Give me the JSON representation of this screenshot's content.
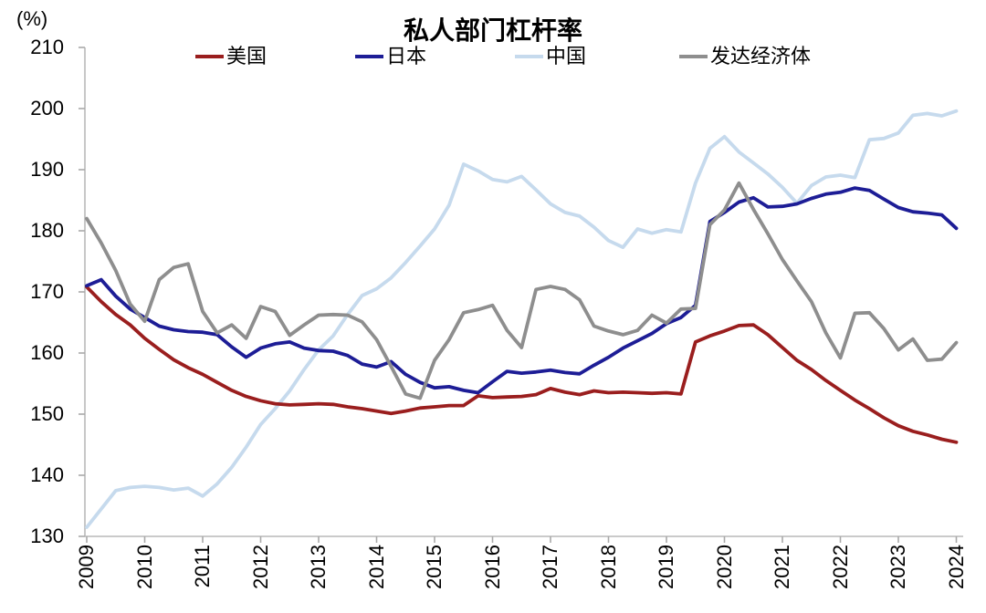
{
  "header": {
    "unit_label": "(%)",
    "title": "私人部门杠杆率"
  },
  "legend": [
    {
      "label": "美国"
    },
    {
      "label": "日本"
    },
    {
      "label": "中国"
    },
    {
      "label": "发达经济体"
    }
  ],
  "colors": {
    "us": "#9a1e1e",
    "japan": "#1d1d96",
    "china": "#c6daed",
    "developed": "#8e8e8e",
    "axis": "#b9b9b9",
    "tick": "#a9a9a9",
    "text": "#000000"
  },
  "chart_data": {
    "type": "line",
    "title": "私人部门杠杆率",
    "unit": "(%)",
    "x_start": 2009.0,
    "x_step": 0.25,
    "x_ticks": [
      "2009",
      "2010",
      "2011",
      "2012",
      "2013",
      "2014",
      "2015",
      "2016",
      "2017",
      "2018",
      "2019",
      "2020",
      "2021",
      "2022",
      "2023",
      "2024"
    ],
    "y_ticks": [
      210,
      200,
      190,
      180,
      170,
      160,
      150,
      140,
      130
    ],
    "ylim": [
      130,
      210
    ],
    "grid": false,
    "legend_position": "top",
    "series": [
      {
        "key": "us",
        "name": "美国",
        "color": "#9a1e1e",
        "values": [
          170.8,
          168.4,
          166.3,
          164.6,
          162.4,
          160.6,
          158.9,
          157.6,
          156.5,
          155.2,
          153.9,
          152.9,
          152.2,
          151.7,
          151.5,
          151.6,
          151.7,
          151.6,
          151.2,
          150.9,
          150.5,
          150.1,
          150.5,
          151.0,
          151.2,
          151.4,
          151.4,
          153.0,
          152.7,
          152.8,
          152.9,
          153.2,
          154.2,
          153.6,
          153.2,
          153.8,
          153.5,
          153.6,
          153.5,
          153.4,
          153.5,
          153.3,
          161.8,
          162.8,
          163.6,
          164.5,
          164.6,
          163.0,
          160.9,
          158.8,
          157.3,
          155.5,
          153.9,
          152.3,
          150.9,
          149.4,
          148.1,
          147.2,
          146.6,
          145.9,
          145.4
        ]
      },
      {
        "key": "japan",
        "name": "日本",
        "color": "#1d1d96",
        "values": [
          171.0,
          172.0,
          169.3,
          167.2,
          165.8,
          164.4,
          163.8,
          163.5,
          163.4,
          163.0,
          161.0,
          159.3,
          160.8,
          161.5,
          161.8,
          160.8,
          160.4,
          160.3,
          159.6,
          158.2,
          157.7,
          158.6,
          156.5,
          155.2,
          154.3,
          154.5,
          153.9,
          153.5,
          155.3,
          157.0,
          156.7,
          156.9,
          157.2,
          156.8,
          156.6,
          158.0,
          159.3,
          160.8,
          162.0,
          163.2,
          164.8,
          165.8,
          167.8,
          181.5,
          183.0,
          184.7,
          185.4,
          183.9,
          184.0,
          184.4,
          185.3,
          186.0,
          186.3,
          187.0,
          186.6,
          185.2,
          183.8,
          183.1,
          182.9,
          182.6,
          180.4
        ]
      },
      {
        "key": "china",
        "name": "中国",
        "color": "#c6daed",
        "values": [
          131.5,
          134.5,
          137.5,
          138.0,
          138.2,
          138.0,
          137.6,
          137.9,
          136.6,
          138.6,
          141.3,
          144.6,
          148.3,
          150.9,
          153.8,
          157.3,
          160.5,
          162.8,
          166.3,
          169.4,
          170.5,
          172.3,
          174.8,
          177.5,
          180.3,
          184.2,
          190.9,
          189.8,
          188.4,
          188.0,
          188.9,
          186.7,
          184.4,
          183.0,
          182.4,
          180.6,
          178.4,
          177.3,
          180.3,
          179.6,
          180.2,
          179.8,
          187.8,
          193.5,
          195.4,
          192.9,
          191.1,
          189.3,
          187.1,
          184.5,
          187.4,
          188.8,
          189.1,
          188.7,
          194.9,
          195.1,
          196.0,
          198.9,
          199.2,
          198.8,
          199.6
        ]
      },
      {
        "key": "developed",
        "name": "发达经济体",
        "color": "#8e8e8e",
        "values": [
          182.0,
          178.0,
          173.5,
          168.0,
          165.2,
          172.0,
          174.0,
          174.6,
          166.8,
          163.3,
          164.6,
          162.4,
          167.6,
          166.8,
          162.9,
          164.6,
          166.2,
          166.3,
          166.2,
          165.1,
          162.2,
          157.8,
          153.3,
          152.6,
          158.8,
          162.2,
          166.6,
          167.1,
          167.8,
          163.7,
          160.9,
          170.4,
          170.9,
          170.4,
          168.7,
          164.4,
          163.6,
          163.0,
          163.7,
          166.2,
          164.9,
          167.2,
          167.3,
          181.0,
          183.4,
          187.8,
          183.5,
          179.5,
          175.3,
          171.8,
          168.4,
          163.3,
          159.2,
          166.5,
          166.6,
          164.0,
          160.5,
          162.3,
          158.8,
          159.0,
          161.7
        ]
      }
    ]
  }
}
